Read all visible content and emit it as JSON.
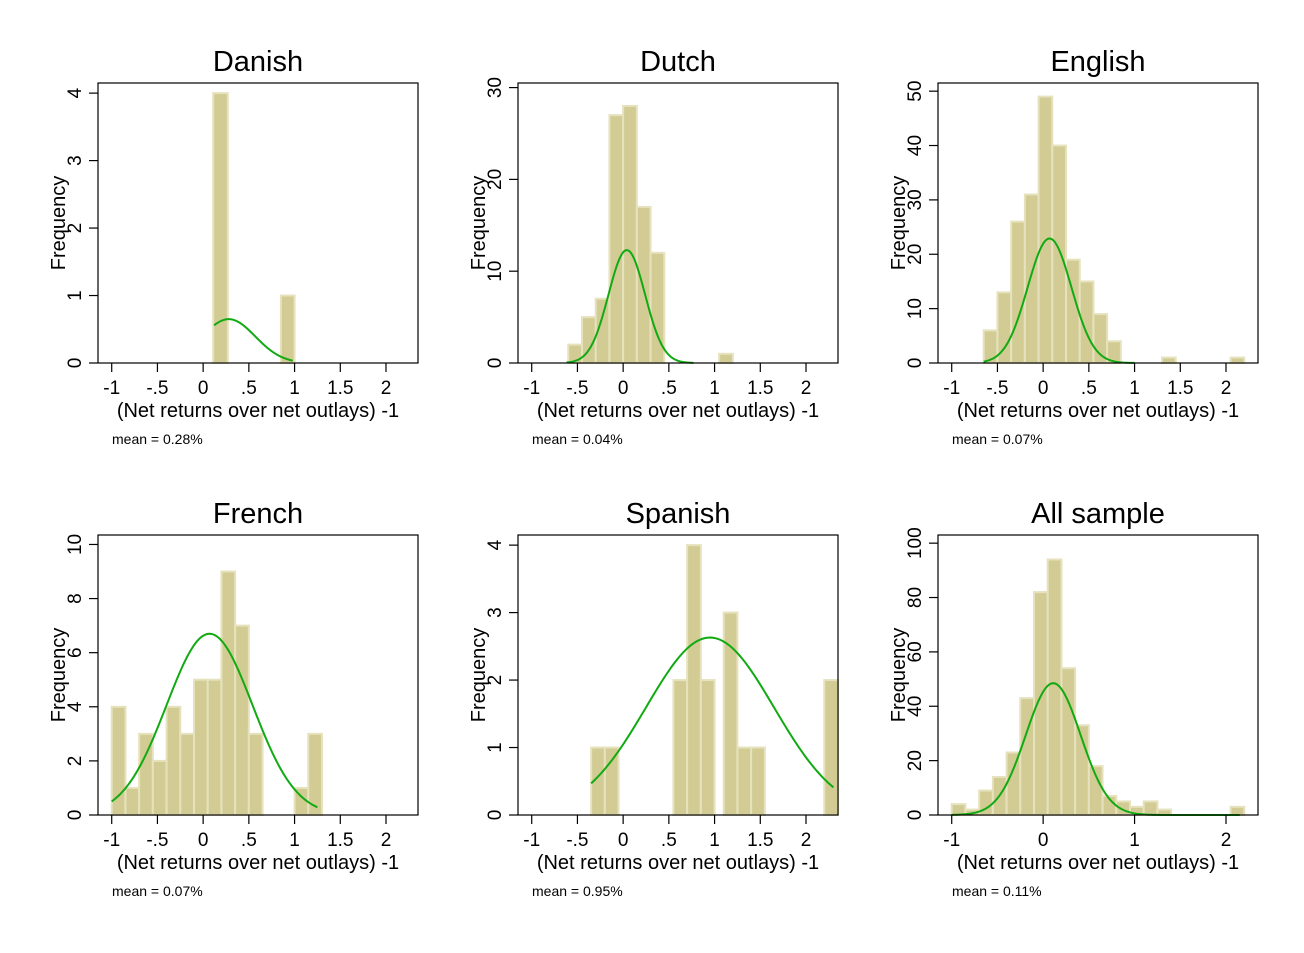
{
  "chart_data": [
    {
      "type": "bar",
      "title": "Danish",
      "xlabel": "(Net returns over net outlays) -1",
      "ylabel": "Frequency",
      "note": "mean = 0.28%",
      "xlim": [
        -1.15,
        2.35
      ],
      "ylim": [
        0,
        4.15
      ],
      "xticks": [
        -1,
        -0.5,
        0,
        0.5,
        1,
        1.5,
        2
      ],
      "xtick_labels": [
        "-1",
        "-.5",
        "0",
        ".5",
        "1",
        "1.5",
        "2"
      ],
      "yticks": [
        0,
        1,
        2,
        3,
        4
      ],
      "ytick_labels": [
        "0",
        "1",
        "2",
        "3",
        "4"
      ],
      "bars": [
        {
          "x0": 0.11,
          "x1": 0.27,
          "value": 4
        },
        {
          "x0": 0.85,
          "x1": 1.0,
          "value": 1
        }
      ],
      "density_curve": {
        "mean": 0.28,
        "sd": 0.29,
        "scale": 0.65,
        "x_range": [
          0.12,
          0.98
        ]
      },
      "colors": {
        "bar_fill": "#d2cc94",
        "bar_edge": "#e6e2bd",
        "curve": "#12aa12"
      }
    },
    {
      "type": "bar",
      "title": "Dutch",
      "xlabel": "(Net returns over net outlays) -1",
      "ylabel": "Frequency",
      "note": "mean = 0.04%",
      "xlim": [
        -1.15,
        2.35
      ],
      "ylim": [
        0,
        30.5
      ],
      "xticks": [
        -1,
        -0.5,
        0,
        0.5,
        1,
        1.5,
        2
      ],
      "xtick_labels": [
        "-1",
        "-.5",
        "0",
        ".5",
        "1",
        "1.5",
        "2"
      ],
      "yticks": [
        0,
        10,
        20,
        30
      ],
      "ytick_labels": [
        "0",
        "10",
        "20",
        "30"
      ],
      "bars": [
        {
          "x0": -0.6,
          "x1": -0.45,
          "value": 2
        },
        {
          "x0": -0.45,
          "x1": -0.3,
          "value": 5
        },
        {
          "x0": -0.3,
          "x1": -0.15,
          "value": 7
        },
        {
          "x0": -0.15,
          "x1": 0.0,
          "value": 27
        },
        {
          "x0": 0.0,
          "x1": 0.15,
          "value": 28
        },
        {
          "x0": 0.15,
          "x1": 0.3,
          "value": 17
        },
        {
          "x0": 0.3,
          "x1": 0.45,
          "value": 12
        },
        {
          "x0": 1.05,
          "x1": 1.2,
          "value": 1
        }
      ],
      "density_curve": {
        "mean": 0.04,
        "sd": 0.2,
        "scale": 12.3,
        "x_range": [
          -0.62,
          0.77
        ]
      },
      "colors": {
        "bar_fill": "#d2cc94",
        "bar_edge": "#e6e2bd",
        "curve": "#12aa12"
      }
    },
    {
      "type": "bar",
      "title": "English",
      "xlabel": "(Net returns over net outlays) -1",
      "ylabel": "Frequency",
      "note": "mean = 0.07%",
      "xlim": [
        -1.15,
        2.35
      ],
      "ylim": [
        0,
        51.5
      ],
      "xticks": [
        -1,
        -0.5,
        0,
        0.5,
        1,
        1.5,
        2
      ],
      "xtick_labels": [
        "-1",
        "-.5",
        "0",
        ".5",
        "1",
        "1.5",
        "2"
      ],
      "yticks": [
        0,
        10,
        20,
        30,
        40,
        50
      ],
      "ytick_labels": [
        "0",
        "10",
        "20",
        "30",
        "40",
        "50"
      ],
      "bars": [
        {
          "x0": -0.65,
          "x1": -0.5,
          "value": 6
        },
        {
          "x0": -0.5,
          "x1": -0.35,
          "value": 13
        },
        {
          "x0": -0.35,
          "x1": -0.2,
          "value": 26
        },
        {
          "x0": -0.2,
          "x1": -0.05,
          "value": 31
        },
        {
          "x0": -0.05,
          "x1": 0.1,
          "value": 49
        },
        {
          "x0": 0.1,
          "x1": 0.25,
          "value": 40
        },
        {
          "x0": 0.25,
          "x1": 0.4,
          "value": 19
        },
        {
          "x0": 0.4,
          "x1": 0.55,
          "value": 15
        },
        {
          "x0": 0.55,
          "x1": 0.7,
          "value": 9
        },
        {
          "x0": 0.7,
          "x1": 0.85,
          "value": 4
        },
        {
          "x0": 1.3,
          "x1": 1.45,
          "value": 1
        },
        {
          "x0": 2.05,
          "x1": 2.2,
          "value": 1
        }
      ],
      "density_curve": {
        "mean": 0.07,
        "sd": 0.24,
        "scale": 22.9,
        "x_range": [
          -0.65,
          1.0
        ]
      },
      "colors": {
        "bar_fill": "#d2cc94",
        "bar_edge": "#e6e2bd",
        "curve": "#12aa12"
      }
    },
    {
      "type": "bar",
      "title": "French",
      "xlabel": "(Net returns over net outlays) -1",
      "ylabel": "Frequency",
      "note": "mean = 0.07%",
      "xlim": [
        -1.15,
        2.35
      ],
      "ylim": [
        0,
        10.35
      ],
      "xticks": [
        -1,
        -0.5,
        0,
        0.5,
        1,
        1.5,
        2
      ],
      "xtick_labels": [
        "-1",
        "-.5",
        "0",
        ".5",
        "1",
        "1.5",
        "2"
      ],
      "yticks": [
        0,
        2,
        4,
        6,
        8,
        10
      ],
      "ytick_labels": [
        "0",
        "2",
        "4",
        "6",
        "8",
        "10"
      ],
      "bars": [
        {
          "x0": -1.0,
          "x1": -0.85,
          "value": 4
        },
        {
          "x0": -0.85,
          "x1": -0.7,
          "value": 1
        },
        {
          "x0": -0.7,
          "x1": -0.55,
          "value": 3
        },
        {
          "x0": -0.55,
          "x1": -0.4,
          "value": 2
        },
        {
          "x0": -0.4,
          "x1": -0.25,
          "value": 4
        },
        {
          "x0": -0.25,
          "x1": -0.1,
          "value": 3
        },
        {
          "x0": -0.1,
          "x1": 0.05,
          "value": 5
        },
        {
          "x0": 0.05,
          "x1": 0.2,
          "value": 5
        },
        {
          "x0": 0.2,
          "x1": 0.35,
          "value": 9
        },
        {
          "x0": 0.35,
          "x1": 0.5,
          "value": 7
        },
        {
          "x0": 0.5,
          "x1": 0.65,
          "value": 3
        },
        {
          "x0": 1.0,
          "x1": 1.15,
          "value": 1
        },
        {
          "x0": 1.15,
          "x1": 1.3,
          "value": 3
        }
      ],
      "density_curve": {
        "mean": 0.07,
        "sd": 0.47,
        "scale": 6.7,
        "x_range": [
          -1.0,
          1.25
        ]
      },
      "colors": {
        "bar_fill": "#d2cc94",
        "bar_edge": "#e6e2bd",
        "curve": "#12aa12"
      }
    },
    {
      "type": "bar",
      "title": "Spanish",
      "xlabel": "(Net returns over net outlays) -1",
      "ylabel": "Frequency",
      "note": "mean = 0.95%",
      "xlim": [
        -1.15,
        2.35
      ],
      "ylim": [
        0,
        4.15
      ],
      "xticks": [
        -1,
        -0.5,
        0,
        0.5,
        1,
        1.5,
        2
      ],
      "xtick_labels": [
        "-1",
        "-.5",
        "0",
        ".5",
        "1",
        "1.5",
        "2"
      ],
      "yticks": [
        0,
        1,
        2,
        3,
        4
      ],
      "ytick_labels": [
        "0",
        "1",
        "2",
        "3",
        "4"
      ],
      "bars": [
        {
          "x0": -0.35,
          "x1": -0.2,
          "value": 1
        },
        {
          "x0": -0.2,
          "x1": -0.05,
          "value": 1
        },
        {
          "x0": 0.55,
          "x1": 0.7,
          "value": 2
        },
        {
          "x0": 0.7,
          "x1": 0.85,
          "value": 4
        },
        {
          "x0": 0.85,
          "x1": 1.0,
          "value": 2
        },
        {
          "x0": 1.1,
          "x1": 1.25,
          "value": 3
        },
        {
          "x0": 1.25,
          "x1": 1.4,
          "value": 1
        },
        {
          "x0": 1.4,
          "x1": 1.55,
          "value": 1
        },
        {
          "x0": 2.2,
          "x1": 2.35,
          "value": 2
        }
      ],
      "density_curve": {
        "mean": 0.95,
        "sd": 0.7,
        "scale": 2.63,
        "x_range": [
          -0.35,
          2.3
        ]
      },
      "colors": {
        "bar_fill": "#d2cc94",
        "bar_edge": "#e6e2bd",
        "curve": "#12aa12"
      }
    },
    {
      "type": "bar",
      "title": "All sample",
      "xlabel": "(Net returns over net outlays) -1",
      "ylabel": "Frequency",
      "note": "mean = 0.11%",
      "xlim": [
        -1.15,
        2.35
      ],
      "ylim": [
        0,
        103
      ],
      "xticks": [
        -1,
        0,
        1,
        2
      ],
      "xtick_labels": [
        "-1",
        "0",
        "1",
        "2"
      ],
      "yticks": [
        0,
        20,
        40,
        60,
        80,
        100
      ],
      "ytick_labels": [
        "0",
        "20",
        "40",
        "60",
        "80",
        "100"
      ],
      "bars": [
        {
          "x0": -1.0,
          "x1": -0.85,
          "value": 4
        },
        {
          "x0": -0.85,
          "x1": -0.7,
          "value": 2
        },
        {
          "x0": -0.7,
          "x1": -0.55,
          "value": 9
        },
        {
          "x0": -0.55,
          "x1": -0.4,
          "value": 14
        },
        {
          "x0": -0.4,
          "x1": -0.25,
          "value": 23
        },
        {
          "x0": -0.25,
          "x1": -0.1,
          "value": 43
        },
        {
          "x0": -0.1,
          "x1": 0.05,
          "value": 82
        },
        {
          "x0": 0.05,
          "x1": 0.2,
          "value": 94
        },
        {
          "x0": 0.2,
          "x1": 0.35,
          "value": 54
        },
        {
          "x0": 0.35,
          "x1": 0.5,
          "value": 33
        },
        {
          "x0": 0.5,
          "x1": 0.65,
          "value": 18
        },
        {
          "x0": 0.65,
          "x1": 0.8,
          "value": 7
        },
        {
          "x0": 0.8,
          "x1": 0.95,
          "value": 5
        },
        {
          "x0": 0.95,
          "x1": 1.1,
          "value": 3
        },
        {
          "x0": 1.1,
          "x1": 1.25,
          "value": 5
        },
        {
          "x0": 1.25,
          "x1": 1.4,
          "value": 2
        },
        {
          "x0": 2.05,
          "x1": 2.2,
          "value": 3
        }
      ],
      "density_curve": {
        "mean": 0.11,
        "sd": 0.3,
        "scale": 48.5,
        "x_range": [
          -1.0,
          2.15
        ]
      },
      "colors": {
        "bar_fill": "#d2cc94",
        "bar_edge": "#e6e2bd",
        "curve": "#12aa12"
      }
    }
  ]
}
